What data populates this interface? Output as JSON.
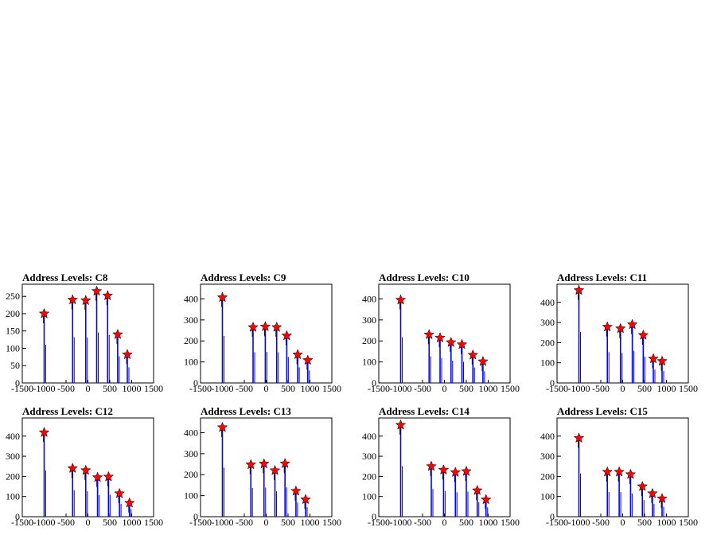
{
  "colors": {
    "histogram": "#0000ff",
    "marker": "#ff0000",
    "axis": "#000000"
  },
  "marker_shape": "star-marker-icon",
  "chart_data": [
    {
      "type": "bar",
      "title": "Address Levels: C8",
      "xlim": [
        -1500,
        1500
      ],
      "ylim": [
        0,
        285
      ],
      "xticks": [
        "-1500",
        "-1000",
        "-500",
        "0",
        "500",
        "1000",
        "1500"
      ],
      "yticks": [
        0,
        50,
        100,
        150,
        200,
        250
      ],
      "peaks": [
        {
          "x": -1000,
          "y": 200
        },
        {
          "x": -350,
          "y": 240
        },
        {
          "x": -50,
          "y": 238
        },
        {
          "x": 200,
          "y": 265
        },
        {
          "x": 450,
          "y": 252
        },
        {
          "x": 680,
          "y": 140
        },
        {
          "x": 900,
          "y": 82
        }
      ]
    },
    {
      "type": "bar",
      "title": "Address Levels: C9",
      "xlim": [
        -1500,
        1500
      ],
      "ylim": [
        0,
        470
      ],
      "xticks": [
        "-1500",
        "-1000",
        "-500",
        "0",
        "500",
        "1000",
        "1500"
      ],
      "yticks": [
        0,
        100,
        200,
        300,
        400
      ],
      "peaks": [
        {
          "x": -1000,
          "y": 407
        },
        {
          "x": -300,
          "y": 265
        },
        {
          "x": -20,
          "y": 268
        },
        {
          "x": 240,
          "y": 265
        },
        {
          "x": 470,
          "y": 225
        },
        {
          "x": 720,
          "y": 135
        },
        {
          "x": 950,
          "y": 108
        }
      ]
    },
    {
      "type": "bar",
      "title": "Address Levels: C10",
      "xlim": [
        -1500,
        1500
      ],
      "ylim": [
        0,
        470
      ],
      "xticks": [
        "-1500",
        "-1000",
        "-500",
        "0",
        "500",
        "1000",
        "1500"
      ],
      "yticks": [
        0,
        100,
        200,
        300,
        400
      ],
      "peaks": [
        {
          "x": -1000,
          "y": 395
        },
        {
          "x": -350,
          "y": 230
        },
        {
          "x": -100,
          "y": 215
        },
        {
          "x": 150,
          "y": 193
        },
        {
          "x": 400,
          "y": 183
        },
        {
          "x": 650,
          "y": 133
        },
        {
          "x": 880,
          "y": 102
        }
      ]
    },
    {
      "type": "bar",
      "title": "Address Levels: C11",
      "xlim": [
        -1500,
        1500
      ],
      "ylim": [
        0,
        490
      ],
      "xticks": [
        "-1500",
        "-1000",
        "-500",
        "0",
        "500",
        "1000",
        "1500"
      ],
      "yticks": [
        0,
        100,
        200,
        300,
        400
      ],
      "peaks": [
        {
          "x": -1000,
          "y": 460
        },
        {
          "x": -350,
          "y": 278
        },
        {
          "x": -50,
          "y": 270
        },
        {
          "x": 220,
          "y": 290
        },
        {
          "x": 470,
          "y": 237
        },
        {
          "x": 700,
          "y": 120
        },
        {
          "x": 900,
          "y": 108
        }
      ]
    },
    {
      "type": "bar",
      "title": "Address Levels: C12",
      "xlim": [
        -1500,
        1500
      ],
      "ylim": [
        0,
        490
      ],
      "xticks": [
        "-1500",
        "-1000",
        "-500",
        "0",
        "500",
        "1000",
        "1500"
      ],
      "yticks": [
        0,
        100,
        200,
        300,
        400
      ],
      "peaks": [
        {
          "x": -1000,
          "y": 418
        },
        {
          "x": -350,
          "y": 240
        },
        {
          "x": -50,
          "y": 230
        },
        {
          "x": 220,
          "y": 195
        },
        {
          "x": 470,
          "y": 198
        },
        {
          "x": 720,
          "y": 115
        },
        {
          "x": 950,
          "y": 68
        }
      ]
    },
    {
      "type": "bar",
      "title": "Address Levels: C13",
      "xlim": [
        -1500,
        1500
      ],
      "ylim": [
        0,
        470
      ],
      "xticks": [
        "-1500",
        "-1000",
        "-500",
        "0",
        "500",
        "1000",
        "1500"
      ],
      "yticks": [
        0,
        100,
        200,
        300,
        400
      ],
      "peaks": [
        {
          "x": -1000,
          "y": 425
        },
        {
          "x": -350,
          "y": 248
        },
        {
          "x": -50,
          "y": 252
        },
        {
          "x": 200,
          "y": 220
        },
        {
          "x": 430,
          "y": 253
        },
        {
          "x": 680,
          "y": 122
        },
        {
          "x": 900,
          "y": 82
        }
      ]
    },
    {
      "type": "bar",
      "title": "Address Levels: C14",
      "xlim": [
        -1500,
        1500
      ],
      "ylim": [
        0,
        490
      ],
      "xticks": [
        "-1500",
        "-1000",
        "-500",
        "0",
        "500",
        "1000",
        "1500"
      ],
      "yticks": [
        0,
        100,
        200,
        300,
        400
      ],
      "peaks": [
        {
          "x": -1000,
          "y": 455
        },
        {
          "x": -300,
          "y": 250
        },
        {
          "x": -20,
          "y": 232
        },
        {
          "x": 250,
          "y": 220
        },
        {
          "x": 500,
          "y": 225
        },
        {
          "x": 750,
          "y": 130
        },
        {
          "x": 950,
          "y": 85
        }
      ]
    },
    {
      "type": "bar",
      "title": "Address Levels: C15",
      "xlim": [
        -1500,
        1500
      ],
      "ylim": [
        0,
        490
      ],
      "xticks": [
        "-1500",
        "-1000",
        "-500",
        "0",
        "500",
        "1000",
        "1500"
      ],
      "yticks": [
        0,
        100,
        200,
        300,
        400
      ],
      "peaks": [
        {
          "x": -1000,
          "y": 390
        },
        {
          "x": -350,
          "y": 222
        },
        {
          "x": -80,
          "y": 222
        },
        {
          "x": 180,
          "y": 210
        },
        {
          "x": 450,
          "y": 150
        },
        {
          "x": 680,
          "y": 115
        },
        {
          "x": 900,
          "y": 90
        }
      ]
    }
  ]
}
